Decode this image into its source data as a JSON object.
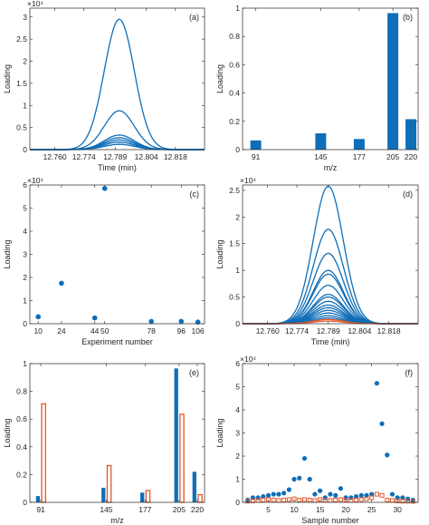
{
  "colors": {
    "blue": "#0f6eb8",
    "orange": "#e0582a",
    "axis": "#262626",
    "grid": "#d0d0d0"
  },
  "chart_data": [
    {
      "panel": "(a)",
      "type": "line",
      "xlabel": "Time (min)",
      "ylabel": "Loading",
      "exponent": "×10⁴",
      "xlim": [
        12.748,
        12.832
      ],
      "ylim": [
        0,
        3.2
      ],
      "xticks": [
        12.76,
        12.774,
        12.789,
        12.804,
        12.818
      ],
      "xtick_labels": [
        "12.760",
        "12.774",
        "12.789",
        "12.804",
        "12.818"
      ],
      "yticks": [
        0,
        0.5,
        1,
        1.5,
        2,
        2.5,
        3
      ],
      "ytick_labels": [
        "0",
        "0.5",
        "1",
        "1.5",
        "2",
        "2.5",
        "3"
      ],
      "peak": {
        "center": 12.791,
        "width": 0.0072
      },
      "series": [
        {
          "peak_value": 2.95
        },
        {
          "peak_value": 0.88
        },
        {
          "peak_value": 0.33
        },
        {
          "peak_value": 0.27
        },
        {
          "peak_value": 0.22
        },
        {
          "peak_value": 0.17
        },
        {
          "peak_value": 0.12
        }
      ]
    },
    {
      "panel": "(b)",
      "type": "bar",
      "xlabel": "m/z",
      "ylabel": "Loading",
      "xlim": [
        80,
        226
      ],
      "ylim": [
        0,
        1
      ],
      "yticks": [
        0,
        0.2,
        0.4,
        0.6,
        0.8,
        1
      ],
      "ytick_labels": [
        "0",
        "0.2",
        "0.4",
        "0.6",
        "0.8",
        "1"
      ],
      "xticks": [
        91,
        145,
        177,
        205,
        220
      ],
      "xtick_labels": [
        "91",
        "145",
        "177",
        "205",
        "220"
      ],
      "bar_width": 9,
      "x": [
        91,
        145,
        177,
        205,
        220
      ],
      "values": [
        0.065,
        0.115,
        0.075,
        0.965,
        0.215
      ]
    },
    {
      "panel": "(c)",
      "type": "scatter",
      "xlabel": "Experiment number",
      "ylabel": "Loading",
      "exponent": "×10⁴",
      "xlim": [
        5,
        110
      ],
      "ylim": [
        0,
        6
      ],
      "xticks": [
        10,
        24,
        44,
        50,
        78,
        96,
        106
      ],
      "xtick_labels": [
        "10",
        "24",
        "44",
        "50",
        "78",
        "96",
        "106"
      ],
      "yticks": [
        0,
        1,
        2,
        3,
        4,
        5,
        6
      ],
      "ytick_labels": [
        "0",
        "1",
        "2",
        "3",
        "4",
        "5",
        "6"
      ],
      "x": [
        10,
        24,
        44,
        50,
        78,
        96,
        106
      ],
      "y": [
        0.3,
        1.75,
        0.25,
        5.85,
        0.1,
        0.1,
        0.07
      ]
    },
    {
      "panel": "(d)",
      "type": "line",
      "xlabel": "Time (min)",
      "ylabel": "Loading",
      "exponent": "×10⁴",
      "xlim": [
        12.748,
        12.832
      ],
      "ylim": [
        0,
        2.6
      ],
      "xticks": [
        12.76,
        12.774,
        12.789,
        12.804,
        12.818
      ],
      "xtick_labels": [
        "12.760",
        "12.774",
        "12.789",
        "12.804",
        "12.818"
      ],
      "yticks": [
        0,
        0.5,
        1,
        1.5,
        2,
        2.5
      ],
      "ytick_labels": [
        "0",
        "0.5",
        "1",
        "1.5",
        "2",
        "2.5"
      ],
      "peak": {
        "center": 12.789,
        "width": 0.0072
      },
      "series": [
        {
          "peak_value": 2.58,
          "color": "blue"
        },
        {
          "peak_value": 1.77,
          "color": "blue"
        },
        {
          "peak_value": 1.32,
          "color": "blue"
        },
        {
          "peak_value": 1.0,
          "color": "blue"
        },
        {
          "peak_value": 0.93,
          "color": "blue"
        },
        {
          "peak_value": 0.72,
          "color": "blue"
        },
        {
          "peak_value": 0.55,
          "color": "blue"
        },
        {
          "peak_value": 0.5,
          "color": "blue"
        },
        {
          "peak_value": 0.42,
          "color": "blue"
        },
        {
          "peak_value": 0.35,
          "color": "blue"
        },
        {
          "peak_value": 0.3,
          "color": "blue"
        },
        {
          "peak_value": 0.25,
          "color": "blue"
        },
        {
          "peak_value": 0.2,
          "color": "blue"
        },
        {
          "peak_value": 0.15,
          "color": "blue"
        },
        {
          "peak_value": 0.11,
          "color": "blue"
        },
        {
          "peak_value": 0.08,
          "color": "orange"
        },
        {
          "peak_value": 0.05,
          "color": "orange"
        }
      ]
    },
    {
      "panel": "(e)",
      "type": "bar",
      "xlabel": "m/z",
      "ylabel": "Loading",
      "xlim": [
        82,
        226
      ],
      "ylim": [
        0,
        1
      ],
      "yticks": [
        0,
        0.2,
        0.4,
        0.6,
        0.8,
        1
      ],
      "ytick_labels": [
        "0",
        "0.2",
        "0.4",
        "0.6",
        "0.8",
        "1"
      ],
      "xticks": [
        91,
        145,
        177,
        205,
        220
      ],
      "xtick_labels": [
        "91",
        "145",
        "177",
        "205",
        "220"
      ],
      "bar_width": 3.2,
      "x": [
        91,
        145,
        177,
        205,
        220
      ],
      "series": [
        {
          "style": "filled",
          "values": [
            0.045,
            0.105,
            0.07,
            0.965,
            0.22
          ]
        },
        {
          "style": "open",
          "values": [
            0.71,
            0.265,
            0.085,
            0.635,
            0.055
          ]
        }
      ]
    },
    {
      "panel": "(f)",
      "type": "scatter",
      "xlabel": "Sample number",
      "ylabel": "Loading",
      "exponent": "×10⁴",
      "xlim": [
        0,
        34
      ],
      "ylim": [
        0,
        6
      ],
      "xticks": [
        5,
        10,
        15,
        20,
        25,
        30
      ],
      "xtick_labels": [
        "5",
        "10",
        "15",
        "20",
        "25",
        "30"
      ],
      "yticks": [
        0,
        1,
        2,
        3,
        4,
        5,
        6
      ],
      "ytick_labels": [
        "0",
        "1",
        "2",
        "3",
        "4",
        "5",
        "6"
      ],
      "series": [
        {
          "style": "filled",
          "x": [
            1,
            2,
            3,
            4,
            5,
            6,
            7,
            8,
            9,
            10,
            11,
            12,
            13,
            14,
            15,
            16,
            17,
            18,
            19,
            20,
            21,
            22,
            23,
            24,
            25,
            26,
            27,
            28,
            29,
            30,
            31,
            32,
            33
          ],
          "y": [
            0.1,
            0.2,
            0.2,
            0.25,
            0.3,
            0.35,
            0.35,
            0.4,
            0.55,
            1.0,
            1.05,
            1.9,
            1.0,
            0.35,
            0.5,
            0.2,
            0.35,
            0.3,
            0.6,
            0.2,
            0.2,
            0.25,
            0.3,
            0.3,
            0.35,
            5.15,
            3.4,
            2.05,
            0.35,
            0.2,
            0.2,
            0.15,
            0.1
          ]
        },
        {
          "style": "open",
          "x": [
            1,
            2,
            3,
            4,
            5,
            6,
            7,
            8,
            9,
            10,
            11,
            12,
            13,
            14,
            15,
            16,
            17,
            18,
            19,
            20,
            21,
            22,
            23,
            24,
            25,
            26,
            27,
            28,
            29,
            30,
            31,
            32,
            33
          ],
          "y": [
            0.05,
            0.06,
            0.08,
            0.1,
            0.12,
            0.1,
            0.08,
            0.1,
            0.12,
            0.15,
            0.1,
            0.12,
            0.1,
            0.08,
            0.12,
            0.1,
            0.08,
            0.1,
            0.12,
            0.1,
            0.08,
            0.1,
            0.12,
            0.15,
            0.2,
            0.35,
            0.3,
            0.1,
            0.08,
            0.06,
            0.05,
            0.05,
            0.04
          ]
        }
      ]
    }
  ]
}
